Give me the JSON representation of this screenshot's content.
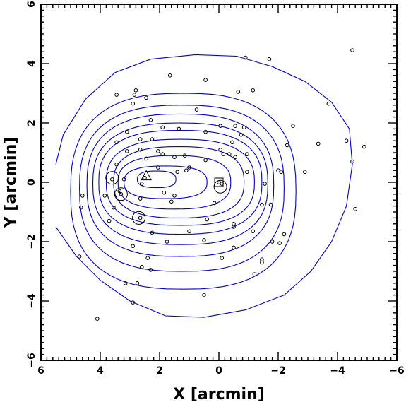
{
  "chart_data": {
    "type": "scatter",
    "xlabel": "X [arcmin]",
    "ylabel": "Y [arcmin]",
    "xlim": [
      6,
      -6
    ],
    "ylim": [
      -6,
      6
    ],
    "x_reversed": true,
    "x_ticks": [
      6,
      4,
      2,
      0,
      -2,
      -4,
      -6
    ],
    "y_ticks": [
      -6,
      -4,
      -2,
      0,
      2,
      4,
      6
    ],
    "x_tick_labels": [
      "6",
      "4",
      "2",
      "0",
      "−2",
      "−4",
      "−6"
    ],
    "y_tick_labels": [
      "−6",
      "−4",
      "−2",
      "0",
      "2",
      "4",
      "6"
    ],
    "contour_color": "#0000cc",
    "marker_color": "#000000",
    "contours": [
      {
        "level": 1,
        "cx": 2.1,
        "cy": 0.1,
        "rx": 0.65,
        "ry": 0.28
      },
      {
        "level": 2,
        "cx": 1.8,
        "cy": 0.0,
        "rx": 1.4,
        "ry": 0.55
      },
      {
        "level": 3,
        "cx": 1.5,
        "cy": 0.0,
        "rx": 1.9,
        "ry": 0.9
      },
      {
        "level": 4,
        "cx": 1.35,
        "cy": 0.0,
        "rx": 2.2,
        "ry": 1.2
      },
      {
        "level": 5,
        "cx": 1.3,
        "cy": 0.0,
        "rx": 2.5,
        "ry": 1.45
      },
      {
        "level": 6,
        "cx": 1.3,
        "cy": 0.0,
        "rx": 2.75,
        "ry": 1.75
      },
      {
        "level": 7,
        "cx": 1.3,
        "cy": -0.05,
        "rx": 2.95,
        "ry": 2.05
      },
      {
        "level": 8,
        "cx": 1.3,
        "cy": -0.1,
        "rx": 3.15,
        "ry": 2.4
      },
      {
        "level": 9,
        "cx": 1.25,
        "cy": -0.2,
        "rx": 3.45,
        "ry": 2.8
      },
      {
        "level": 10,
        "cx": 1.2,
        "cy": -0.3,
        "rx": 3.8,
        "ry": 3.3
      }
    ],
    "outer_contour": [
      [
        5.5,
        0.6
      ],
      [
        5.25,
        1.6
      ],
      [
        4.5,
        2.8
      ],
      [
        3.5,
        3.7
      ],
      [
        2.3,
        4.15
      ],
      [
        0.8,
        4.3
      ],
      [
        -0.6,
        4.25
      ],
      [
        -1.8,
        3.9
      ],
      [
        -2.9,
        3.4
      ],
      [
        -3.8,
        2.7
      ],
      [
        -4.4,
        1.8
      ],
      [
        -4.5,
        0.6
      ],
      [
        -4.3,
        -0.8
      ],
      [
        -3.8,
        -2.0
      ],
      [
        -3.1,
        -3.0
      ],
      [
        -2.2,
        -3.8
      ],
      [
        -0.9,
        -4.3
      ],
      [
        0.5,
        -4.55
      ],
      [
        1.8,
        -4.5
      ],
      [
        3.0,
        -4.0
      ],
      [
        4.0,
        -3.3
      ],
      [
        4.8,
        -2.5
      ],
      [
        5.5,
        -1.5
      ]
    ],
    "points": [
      {
        "x": 0.75,
        "y": 2.45
      },
      {
        "x": -0.9,
        "y": 4.2
      },
      {
        "x": -1.7,
        "y": 4.15
      },
      {
        "x": -4.5,
        "y": 4.45
      },
      {
        "x": 1.65,
        "y": 3.6
      },
      {
        "x": 0.45,
        "y": 3.45
      },
      {
        "x": 2.8,
        "y": 3.1
      },
      {
        "x": 2.85,
        "y": 2.95
      },
      {
        "x": 3.45,
        "y": 2.95
      },
      {
        "x": 2.45,
        "y": 2.85
      },
      {
        "x": 2.9,
        "y": 2.65
      },
      {
        "x": -0.65,
        "y": 3.05
      },
      {
        "x": -1.15,
        "y": 3.1
      },
      {
        "x": -3.7,
        "y": 2.65
      },
      {
        "x": 2.3,
        "y": 2.1
      },
      {
        "x": -0.05,
        "y": 1.9
      },
      {
        "x": -0.55,
        "y": 1.9
      },
      {
        "x": -0.85,
        "y": 1.85
      },
      {
        "x": 1.9,
        "y": 1.85
      },
      {
        "x": 1.35,
        "y": 1.8
      },
      {
        "x": 0.45,
        "y": 1.7
      },
      {
        "x": -0.75,
        "y": 1.6
      },
      {
        "x": -2.5,
        "y": 1.9
      },
      {
        "x": 3.1,
        "y": 1.7
      },
      {
        "x": 2.25,
        "y": 1.45
      },
      {
        "x": 2.65,
        "y": 1.45
      },
      {
        "x": 3.45,
        "y": 1.35
      },
      {
        "x": -0.45,
        "y": 1.35
      },
      {
        "x": -0.05,
        "y": 1.1
      },
      {
        "x": -2.3,
        "y": 1.25
      },
      {
        "x": -3.35,
        "y": 1.3
      },
      {
        "x": -4.3,
        "y": 1.4
      },
      {
        "x": -4.9,
        "y": 1.2
      },
      {
        "x": 2.65,
        "y": 1.1
      },
      {
        "x": 2.05,
        "y": 1.05
      },
      {
        "x": 3.1,
        "y": 1.05
      },
      {
        "x": 1.9,
        "y": 0.95
      },
      {
        "x": -0.15,
        "y": 0.95
      },
      {
        "x": -0.35,
        "y": 0.95
      },
      {
        "x": -0.95,
        "y": 0.95
      },
      {
        "x": 2.45,
        "y": 0.8
      },
      {
        "x": 1.5,
        "y": 0.85
      },
      {
        "x": 1.15,
        "y": 0.9
      },
      {
        "x": -0.55,
        "y": 0.85
      },
      {
        "x": 0.45,
        "y": 0.75
      },
      {
        "x": 1.0,
        "y": 0.5
      },
      {
        "x": 1.1,
        "y": 0.4
      },
      {
        "x": 1.4,
        "y": 0.35
      },
      {
        "x": 3.45,
        "y": 0.6
      },
      {
        "x": 2.05,
        "y": 0.5
      },
      {
        "x": -0.95,
        "y": 0.35
      },
      {
        "x": -2.0,
        "y": 0.4
      },
      {
        "x": -2.1,
        "y": 0.35
      },
      {
        "x": -2.9,
        "y": 0.35
      },
      {
        "x": -4.5,
        "y": 0.7
      },
      {
        "x": 3.6,
        "y": 0.1
      },
      {
        "x": 2.5,
        "y": 0.15
      },
      {
        "x": 3.2,
        "y": 0.1
      },
      {
        "x": 0.0,
        "y": 0.0
      },
      {
        "x": -0.1,
        "y": -0.05
      },
      {
        "x": -1.55,
        "y": -0.05
      },
      {
        "x": 2.6,
        "y": -0.05
      },
      {
        "x": 3.35,
        "y": -0.3
      },
      {
        "x": 3.3,
        "y": -0.4
      },
      {
        "x": 1.85,
        "y": -0.35
      },
      {
        "x": 1.5,
        "y": -0.45
      },
      {
        "x": 3.85,
        "y": -0.45
      },
      {
        "x": 4.6,
        "y": -0.45
      },
      {
        "x": 2.65,
        "y": -0.55
      },
      {
        "x": 1.6,
        "y": -0.65
      },
      {
        "x": 3.55,
        "y": -0.85
      },
      {
        "x": -1.45,
        "y": -0.75
      },
      {
        "x": -1.75,
        "y": -0.75
      },
      {
        "x": 4.65,
        "y": -0.85
      },
      {
        "x": 0.15,
        "y": -0.7
      },
      {
        "x": -4.6,
        "y": -0.9
      },
      {
        "x": 2.65,
        "y": -1.2
      },
      {
        "x": 0.4,
        "y": -1.25
      },
      {
        "x": 3.7,
        "y": -1.3
      },
      {
        "x": -0.5,
        "y": -1.4
      },
      {
        "x": -0.5,
        "y": -1.5
      },
      {
        "x": 2.25,
        "y": -1.7
      },
      {
        "x": 1.0,
        "y": -1.65
      },
      {
        "x": -1.15,
        "y": -1.65
      },
      {
        "x": -2.2,
        "y": -1.75
      },
      {
        "x": 1.75,
        "y": -2.0
      },
      {
        "x": 0.5,
        "y": -1.95
      },
      {
        "x": -1.8,
        "y": -2.0
      },
      {
        "x": -2.05,
        "y": -2.05
      },
      {
        "x": 2.9,
        "y": -2.15
      },
      {
        "x": -0.5,
        "y": -2.2
      },
      {
        "x": 2.4,
        "y": -2.55
      },
      {
        "x": 4.7,
        "y": -2.5
      },
      {
        "x": -0.1,
        "y": -2.55
      },
      {
        "x": -1.45,
        "y": -2.6
      },
      {
        "x": 2.6,
        "y": -2.85
      },
      {
        "x": -1.45,
        "y": -2.7
      },
      {
        "x": 2.3,
        "y": -2.95
      },
      {
        "x": -1.2,
        "y": -3.1
      },
      {
        "x": 3.15,
        "y": -3.4
      },
      {
        "x": 2.75,
        "y": -3.4
      },
      {
        "x": 0.5,
        "y": -3.8
      },
      {
        "x": 2.9,
        "y": -4.05
      },
      {
        "x": 4.1,
        "y": -4.6
      }
    ],
    "circled": [
      {
        "x": 3.6,
        "y": 0.15
      },
      {
        "x": 3.3,
        "y": -0.4
      },
      {
        "x": 2.7,
        "y": -1.2
      },
      {
        "x": -0.05,
        "y": -0.15
      }
    ],
    "triangle": {
      "x": 2.45,
      "y": 0.2
    },
    "square": {
      "x": 0.0,
      "y": 0.0
    }
  }
}
